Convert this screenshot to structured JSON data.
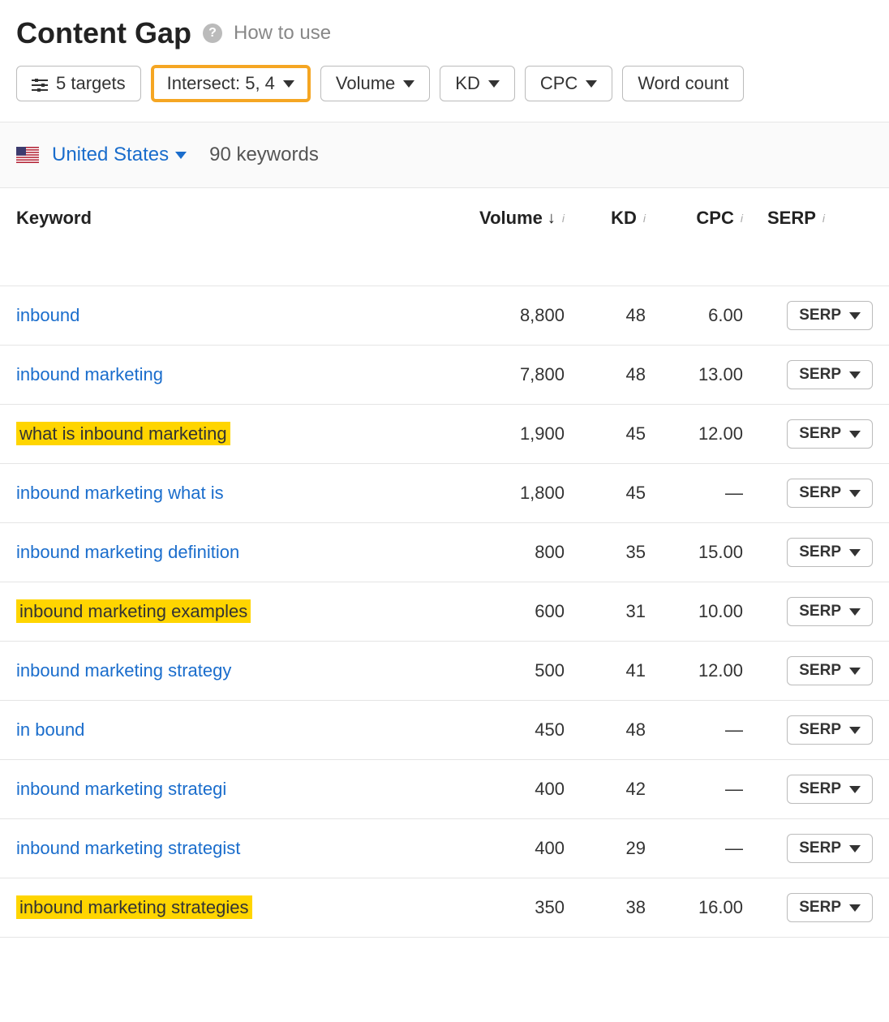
{
  "header": {
    "title": "Content Gap",
    "how_to_use": "How to use"
  },
  "filters": {
    "targets": "5 targets",
    "intersect": "Intersect: 5, 4",
    "volume": "Volume",
    "kd": "KD",
    "cpc": "CPC",
    "word_count": "Word count"
  },
  "summary": {
    "country": "United States",
    "keyword_count": "90 keywords"
  },
  "columns": {
    "keyword": "Keyword",
    "volume": "Volume",
    "kd": "KD",
    "cpc": "CPC",
    "serp": "SERP"
  },
  "serp_label": "SERP",
  "rows": [
    {
      "keyword": "inbound",
      "volume": "8,800",
      "kd": "48",
      "cpc": "6.00",
      "highlighted": false
    },
    {
      "keyword": "inbound marketing",
      "volume": "7,800",
      "kd": "48",
      "cpc": "13.00",
      "highlighted": false
    },
    {
      "keyword": "what is inbound marketing",
      "volume": "1,900",
      "kd": "45",
      "cpc": "12.00",
      "highlighted": true
    },
    {
      "keyword": "inbound marketing what is",
      "volume": "1,800",
      "kd": "45",
      "cpc": "—",
      "highlighted": false
    },
    {
      "keyword": "inbound marketing definition",
      "volume": "800",
      "kd": "35",
      "cpc": "15.00",
      "highlighted": false
    },
    {
      "keyword": "inbound marketing examples",
      "volume": "600",
      "kd": "31",
      "cpc": "10.00",
      "highlighted": true
    },
    {
      "keyword": "inbound marketing strategy",
      "volume": "500",
      "kd": "41",
      "cpc": "12.00",
      "highlighted": false
    },
    {
      "keyword": "in bound",
      "volume": "450",
      "kd": "48",
      "cpc": "—",
      "highlighted": false
    },
    {
      "keyword": "inbound marketing strategi",
      "volume": "400",
      "kd": "42",
      "cpc": "—",
      "highlighted": false
    },
    {
      "keyword": "inbound marketing strategist",
      "volume": "400",
      "kd": "29",
      "cpc": "—",
      "highlighted": false
    },
    {
      "keyword": "inbound marketing strategies",
      "volume": "350",
      "kd": "38",
      "cpc": "16.00",
      "highlighted": true
    }
  ]
}
